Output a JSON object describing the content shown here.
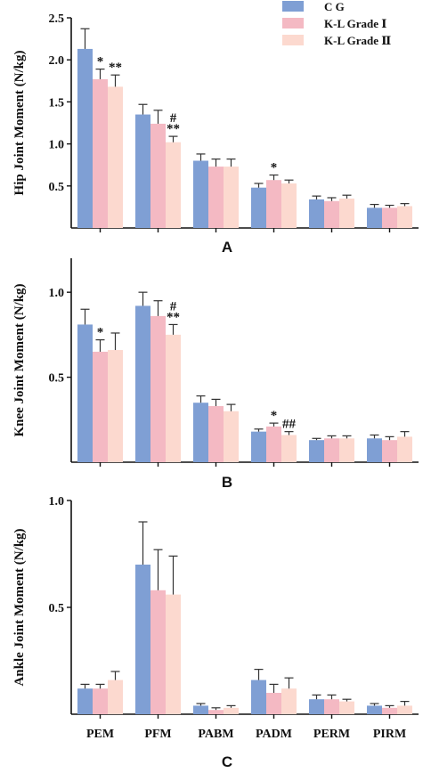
{
  "legend": {
    "items": [
      {
        "label": "C G",
        "color": "#7f9fd4"
      },
      {
        "label": "K-L Grade Ⅰ",
        "color": "#f4b9c3"
      },
      {
        "label": "K-L Grade Ⅱ",
        "color": "#fcd9cf"
      }
    ]
  },
  "chart_data": [
    {
      "type": "bar",
      "panel_label": "A",
      "ylabel": "Hip Joint Moment (N/kg)",
      "ylim": [
        0,
        2.5
      ],
      "yticks": [
        "0.5",
        "1.0",
        "1.5",
        "2.0",
        "2.5"
      ],
      "categories": [
        "PEM",
        "PFM",
        "PABM",
        "PADM",
        "PERM",
        "PIRM"
      ],
      "x_tick_labels_shown": false,
      "series": [
        {
          "name": "C G",
          "values": [
            2.13,
            1.35,
            0.8,
            0.48,
            0.34,
            0.24
          ],
          "errors": [
            0.24,
            0.12,
            0.08,
            0.05,
            0.04,
            0.04
          ]
        },
        {
          "name": "K-L Grade Ⅰ",
          "values": [
            1.77,
            1.24,
            0.73,
            0.57,
            0.32,
            0.24
          ],
          "errors": [
            0.12,
            0.16,
            0.09,
            0.06,
            0.04,
            0.03
          ]
        },
        {
          "name": "K-L Grade Ⅱ",
          "values": [
            1.68,
            1.02,
            0.73,
            0.53,
            0.35,
            0.26
          ],
          "errors": [
            0.14,
            0.07,
            0.09,
            0.04,
            0.04,
            0.03
          ]
        }
      ],
      "annotations": [
        {
          "category": "PEM",
          "series": "K-L Grade Ⅰ",
          "text": "*"
        },
        {
          "category": "PEM",
          "series": "K-L Grade Ⅱ",
          "text": "**"
        },
        {
          "category": "PFM",
          "series": "K-L Grade Ⅱ",
          "text": "#\n**"
        },
        {
          "category": "PADM",
          "series": "K-L Grade Ⅰ",
          "text": "*"
        }
      ]
    },
    {
      "type": "bar",
      "panel_label": "B",
      "ylabel": "Knee Joint Moment (N/kg)",
      "ylim": [
        0,
        1.2
      ],
      "yticks": [
        "0.5",
        "1.0"
      ],
      "categories": [
        "PEM",
        "PFM",
        "PABM",
        "PADM",
        "PERM",
        "PIRM"
      ],
      "x_tick_labels_shown": false,
      "series": [
        {
          "name": "C G",
          "values": [
            0.81,
            0.92,
            0.35,
            0.18,
            0.13,
            0.14
          ],
          "errors": [
            0.09,
            0.08,
            0.04,
            0.015,
            0.01,
            0.02
          ]
        },
        {
          "name": "K-L Grade Ⅰ",
          "values": [
            0.65,
            0.86,
            0.33,
            0.21,
            0.14,
            0.13
          ],
          "errors": [
            0.07,
            0.09,
            0.04,
            0.02,
            0.015,
            0.02
          ]
        },
        {
          "name": "K-L Grade Ⅱ",
          "values": [
            0.66,
            0.75,
            0.3,
            0.16,
            0.14,
            0.15
          ],
          "errors": [
            0.1,
            0.06,
            0.04,
            0.02,
            0.015,
            0.03
          ]
        }
      ],
      "annotations": [
        {
          "category": "PEM",
          "series": "K-L Grade Ⅰ",
          "text": "*"
        },
        {
          "category": "PFM",
          "series": "K-L Grade Ⅱ",
          "text": "#\n**"
        },
        {
          "category": "PADM",
          "series": "K-L Grade Ⅰ",
          "text": "*"
        },
        {
          "category": "PADM",
          "series": "K-L Grade Ⅱ",
          "text": "##"
        }
      ]
    },
    {
      "type": "bar",
      "panel_label": "C",
      "ylabel": "Ankle Joint Moment (N/kg)",
      "ylim": [
        0,
        1.0
      ],
      "yticks": [
        "0.5",
        "1.0"
      ],
      "categories": [
        "PEM",
        "PFM",
        "PABM",
        "PADM",
        "PERM",
        "PIRM"
      ],
      "x_tick_labels_shown": true,
      "series": [
        {
          "name": "C G",
          "values": [
            0.12,
            0.7,
            0.04,
            0.16,
            0.07,
            0.04
          ],
          "errors": [
            0.02,
            0.2,
            0.01,
            0.05,
            0.02,
            0.01
          ]
        },
        {
          "name": "K-L Grade Ⅰ",
          "values": [
            0.12,
            0.58,
            0.02,
            0.1,
            0.07,
            0.03
          ],
          "errors": [
            0.02,
            0.19,
            0.01,
            0.04,
            0.02,
            0.01
          ]
        },
        {
          "name": "K-L Grade Ⅱ",
          "values": [
            0.16,
            0.56,
            0.03,
            0.12,
            0.06,
            0.04
          ],
          "errors": [
            0.04,
            0.18,
            0.01,
            0.05,
            0.01,
            0.02
          ]
        }
      ],
      "annotations": []
    }
  ]
}
